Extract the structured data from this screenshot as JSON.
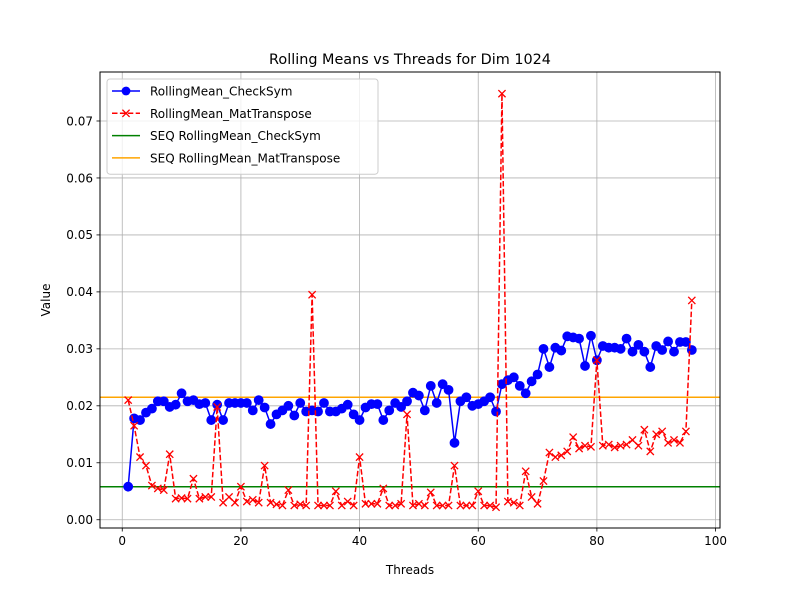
{
  "chart_data": {
    "type": "line",
    "title": "Rolling Means vs Threads for Dim 1024",
    "xlabel": "Threads",
    "ylabel": "Value",
    "xlim": [
      -3.75,
      100.75
    ],
    "ylim": [
      -0.00145,
      0.0786
    ],
    "xticks": [
      0,
      20,
      40,
      60,
      80,
      100
    ],
    "yticks": [
      0.0,
      0.01,
      0.02,
      0.03,
      0.04,
      0.05,
      0.06,
      0.07
    ],
    "ytick_labels": [
      "0.00",
      "0.01",
      "0.02",
      "0.03",
      "0.04",
      "0.05",
      "0.06",
      "0.07"
    ],
    "grid": true,
    "legend_position": "upper-left",
    "x": [
      1,
      2,
      3,
      4,
      5,
      6,
      7,
      8,
      9,
      10,
      11,
      12,
      13,
      14,
      15,
      16,
      17,
      18,
      19,
      20,
      21,
      22,
      23,
      24,
      25,
      26,
      27,
      28,
      29,
      30,
      31,
      32,
      33,
      34,
      35,
      36,
      37,
      38,
      39,
      40,
      41,
      42,
      43,
      44,
      45,
      46,
      47,
      48,
      49,
      50,
      51,
      52,
      53,
      54,
      55,
      56,
      57,
      58,
      59,
      60,
      61,
      62,
      63,
      64,
      65,
      66,
      67,
      68,
      69,
      70,
      71,
      72,
      73,
      74,
      75,
      76,
      77,
      78,
      79,
      80,
      81,
      82,
      83,
      84,
      85,
      86,
      87,
      88,
      89,
      90,
      91,
      92,
      93,
      94,
      95,
      96
    ],
    "series": [
      {
        "name": "RollingMean_CheckSym",
        "color": "#0000ff",
        "linestyle": "solid",
        "marker": "circle",
        "values": [
          0.0058,
          0.0178,
          0.0175,
          0.0188,
          0.0195,
          0.0208,
          0.0208,
          0.0198,
          0.0202,
          0.0222,
          0.0208,
          0.021,
          0.0203,
          0.0205,
          0.0175,
          0.0202,
          0.0175,
          0.0205,
          0.0205,
          0.0205,
          0.0205,
          0.0192,
          0.021,
          0.0197,
          0.0168,
          0.0185,
          0.0192,
          0.02,
          0.0183,
          0.0205,
          0.019,
          0.0192,
          0.019,
          0.0205,
          0.019,
          0.019,
          0.0195,
          0.0202,
          0.0185,
          0.0175,
          0.0197,
          0.0203,
          0.0203,
          0.0175,
          0.0192,
          0.0205,
          0.0198,
          0.0208,
          0.0223,
          0.0218,
          0.0192,
          0.0235,
          0.0205,
          0.0238,
          0.0228,
          0.0135,
          0.0208,
          0.0215,
          0.02,
          0.0203,
          0.0208,
          0.0215,
          0.019,
          0.0238,
          0.0245,
          0.025,
          0.0235,
          0.0222,
          0.0243,
          0.0255,
          0.03,
          0.0268,
          0.0302,
          0.0297,
          0.0322,
          0.032,
          0.0318,
          0.027,
          0.0323,
          0.028,
          0.0305,
          0.0302,
          0.0302,
          0.03,
          0.0318,
          0.0295,
          0.0307,
          0.0295,
          0.0268,
          0.0305,
          0.0298,
          0.0313,
          0.0295,
          0.0312,
          0.0312,
          0.0298
        ]
      },
      {
        "name": "RollingMean_MatTranspose",
        "color": "#ff0000",
        "linestyle": "dashed",
        "marker": "x",
        "values": [
          0.021,
          0.0165,
          0.011,
          0.0095,
          0.006,
          0.0055,
          0.0052,
          0.0115,
          0.0037,
          0.0038,
          0.0037,
          0.0072,
          0.0037,
          0.004,
          0.004,
          0.0198,
          0.003,
          0.004,
          0.003,
          0.0058,
          0.0032,
          0.0035,
          0.003,
          0.0095,
          0.003,
          0.0027,
          0.0025,
          0.0052,
          0.0025,
          0.0027,
          0.0025,
          0.0395,
          0.0025,
          0.0025,
          0.0025,
          0.005,
          0.0025,
          0.0032,
          0.0025,
          0.011,
          0.0028,
          0.0028,
          0.0028,
          0.0055,
          0.0025,
          0.0025,
          0.0028,
          0.0185,
          0.0025,
          0.0028,
          0.0025,
          0.0048,
          0.0025,
          0.0025,
          0.0025,
          0.0095,
          0.0025,
          0.0025,
          0.0025,
          0.005,
          0.0025,
          0.0025,
          0.0022,
          0.0748,
          0.0032,
          0.003,
          0.0025,
          0.0085,
          0.004,
          0.0028,
          0.0068,
          0.0118,
          0.011,
          0.0113,
          0.012,
          0.0145,
          0.0125,
          0.013,
          0.0128,
          0.028,
          0.013,
          0.0132,
          0.0127,
          0.013,
          0.0132,
          0.014,
          0.013,
          0.0158,
          0.012,
          0.015,
          0.0155,
          0.0135,
          0.014,
          0.0135,
          0.0155,
          0.0385
        ]
      }
    ],
    "hlines": [
      {
        "name": "SEQ RollingMean_CheckSym",
        "color": "#008000",
        "y": 0.0058
      },
      {
        "name": "SEQ RollingMean_MatTranspose",
        "color": "#ffa500",
        "y": 0.0215
      }
    ]
  }
}
